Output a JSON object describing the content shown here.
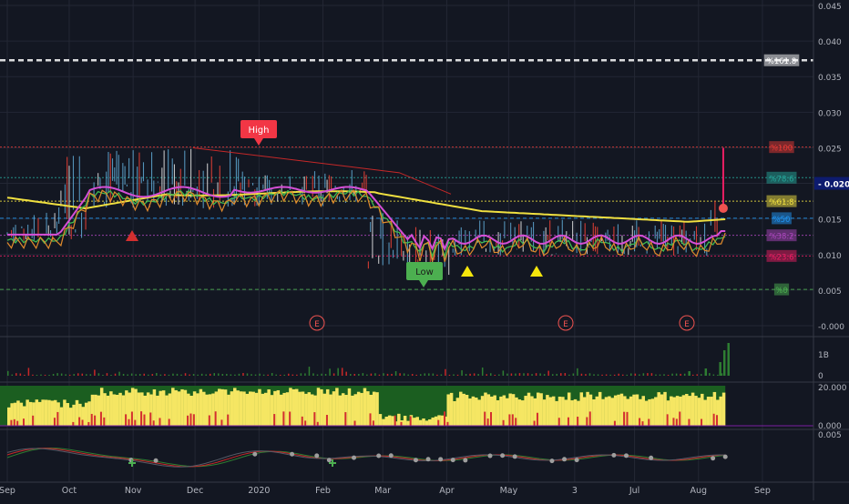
{
  "chart_data": {
    "type": "line",
    "colors": {
      "background": "#131722",
      "grid": "#232734",
      "axis_text": "#b2b5be",
      "price_bar": "#5fa8d3",
      "ema_short": "#e08a2c",
      "ema_mid": "#3fb950",
      "ema_long": "#f0e040",
      "vwap": "#d64fd6",
      "sell_signal": "#d32f2f",
      "buy_signal": "#f5e60c",
      "volume": "#2e7d32",
      "pressure_top": "#1b5e20",
      "pressure_mid": "#f5e663",
      "pressure_low": "#d32f2f"
    },
    "main_panel": {
      "y_ticks": [
        "0.045",
        "0.040",
        "0.035",
        "0.030",
        "0.025",
        "0.020",
        "0.015",
        "0.010",
        "0.005",
        "-0.000"
      ],
      "current_price": "0.020",
      "fib_levels": [
        {
          "label": "%161.8",
          "price": 0.0373,
          "color": "#ffffff",
          "style": "dashed-thick"
        },
        {
          "label": "%100",
          "price": 0.0251,
          "color": "#e53935",
          "style": "dotted"
        },
        {
          "label": "%78.6",
          "price": 0.0208,
          "color": "#26a69a",
          "style": "dotted"
        },
        {
          "label": "%61.8",
          "price": 0.0175,
          "color": "#f0e040",
          "style": "dotted"
        },
        {
          "label": "%50",
          "price": 0.0151,
          "color": "#2196f3",
          "style": "dashed"
        },
        {
          "label": "%38.2",
          "price": 0.0127,
          "color": "#ab47bc",
          "style": "dotted"
        },
        {
          "label": "%23.6",
          "price": 0.0098,
          "color": "#e91e63",
          "style": "dotted"
        },
        {
          "label": "%0",
          "price": 0.0051,
          "color": "#4caf50",
          "style": "dashed"
        }
      ],
      "high_label": "High",
      "low_label": "Low",
      "earnings_label": "E"
    },
    "volume_panel": {
      "y_ticks": [
        "1B",
        "0"
      ]
    },
    "pressure_panel": {
      "y_ticks": [
        "20.000",
        "0.000"
      ]
    },
    "oscillator_panel": {
      "y_ticks": [
        "0.005"
      ]
    },
    "x_ticks": [
      "Sep",
      "Oct",
      "Nov",
      "Dec",
      "2020",
      "Feb",
      "Mar",
      "Apr",
      "May",
      "3",
      "Jul",
      "Aug",
      "Sep"
    ]
  }
}
